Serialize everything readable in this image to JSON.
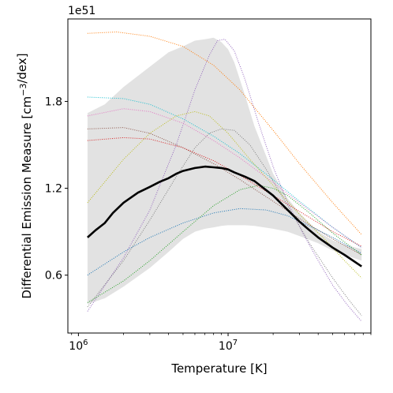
{
  "chart_data": {
    "type": "line",
    "title": "",
    "xlabel": "Temperature [K]",
    "ylabel": "Differential Emission Measure [cm$^{-3}$/dex]",
    "y_offset_text": "1e51",
    "x_scale": "log",
    "xlim": [
      850000,
      90000000
    ],
    "ylim": [
      0.2,
      2.37
    ],
    "x_ticks": [
      {
        "value": 1000000,
        "base": "10",
        "exp": "6"
      },
      {
        "value": 10000000,
        "base": "10",
        "exp": "7"
      }
    ],
    "y_ticks": [
      {
        "value": 0.6,
        "label": "0.6"
      },
      {
        "value": 1.2,
        "label": "1.2"
      },
      {
        "value": 1.8,
        "label": "1.8"
      }
    ],
    "grid": false,
    "legend": "none",
    "band": {
      "color": "#e2e2e2",
      "x": [
        1150000,
        1500000,
        2000000,
        3000000,
        4000000,
        5000000,
        6000000,
        7000000,
        8000000,
        9000000,
        10000000,
        11000000,
        13000000,
        15000000,
        20000000,
        25000000,
        30000000,
        40000000,
        50000000,
        60000000,
        78000000
      ],
      "upper": [
        1.72,
        1.78,
        1.9,
        2.04,
        2.14,
        2.18,
        2.22,
        2.23,
        2.24,
        2.21,
        2.16,
        2.07,
        1.84,
        1.63,
        1.3,
        1.13,
        1.03,
        0.9,
        0.84,
        0.81,
        0.78
      ],
      "lower": [
        0.4,
        0.44,
        0.52,
        0.65,
        0.76,
        0.85,
        0.9,
        0.92,
        0.93,
        0.94,
        0.945,
        0.945,
        0.945,
        0.94,
        0.92,
        0.9,
        0.87,
        0.82,
        0.77,
        0.74,
        0.7
      ]
    },
    "median": {
      "color": "#000000",
      "x": [
        1150000,
        1300000,
        1500000,
        1700000,
        2000000,
        2500000,
        3000000,
        3500000,
        4000000,
        4500000,
        5000000,
        6000000,
        7000000,
        8000000,
        9000000,
        10000000,
        11000000,
        13000000,
        15000000,
        20000000,
        25000000,
        30000000,
        35000000,
        40000000,
        50000000,
        60000000,
        78000000
      ],
      "y": [
        0.86,
        0.91,
        0.96,
        1.03,
        1.1,
        1.17,
        1.21,
        1.245,
        1.27,
        1.3,
        1.32,
        1.34,
        1.35,
        1.345,
        1.34,
        1.33,
        1.31,
        1.28,
        1.25,
        1.15,
        1.05,
        0.97,
        0.91,
        0.86,
        0.79,
        0.74,
        0.66
      ]
    },
    "series": [
      {
        "color": "#ff7f0e",
        "x": [
          1150000,
          1800000,
          3000000,
          5000000,
          8000000,
          12000000,
          20000000,
          30000000,
          50000000,
          78000000
        ],
        "y": [
          2.27,
          2.28,
          2.25,
          2.18,
          2.05,
          1.88,
          1.6,
          1.37,
          1.1,
          0.88
        ]
      },
      {
        "color": "#9467bd",
        "x": [
          1150000,
          2000000,
          3000000,
          4500000,
          6000000,
          7500000,
          8500000,
          9500000,
          11000000,
          13000000,
          16000000,
          20000000,
          25000000,
          32000000,
          40000000,
          50000000,
          62000000,
          78000000
        ],
        "y": [
          0.35,
          0.72,
          1.05,
          1.5,
          1.88,
          2.12,
          2.22,
          2.23,
          2.15,
          1.95,
          1.65,
          1.35,
          1.1,
          0.88,
          0.7,
          0.53,
          0.4,
          0.28
        ]
      },
      {
        "color": "#17becf",
        "x": [
          1150000,
          2000000,
          3000000,
          5000000,
          8000000,
          12000000,
          20000000,
          30000000,
          50000000,
          78000000
        ],
        "y": [
          1.83,
          1.82,
          1.78,
          1.68,
          1.56,
          1.44,
          1.26,
          1.11,
          0.93,
          0.79
        ]
      },
      {
        "color": "#e377c2",
        "x": [
          1150000,
          2000000,
          3000000,
          5000000,
          8000000,
          12000000,
          20000000,
          30000000,
          50000000,
          78000000
        ],
        "y": [
          1.7,
          1.75,
          1.73,
          1.65,
          1.53,
          1.41,
          1.24,
          1.1,
          0.93,
          0.79
        ]
      },
      {
        "color": "#bcbd22",
        "x": [
          1150000,
          2000000,
          3000000,
          4500000,
          6000000,
          7500000,
          10000000,
          14000000,
          20000000,
          30000000,
          45000000,
          60000000,
          78000000
        ],
        "y": [
          1.1,
          1.4,
          1.58,
          1.7,
          1.73,
          1.7,
          1.58,
          1.4,
          1.22,
          1.02,
          0.84,
          0.7,
          0.58
        ]
      },
      {
        "color": "#7f7f7f",
        "x": [
          1150000,
          2000000,
          3000000,
          4500000,
          6000000,
          7500000,
          9000000,
          11000000,
          14000000,
          18000000,
          25000000,
          35000000,
          50000000,
          65000000,
          78000000
        ],
        "y": [
          0.38,
          0.7,
          0.98,
          1.28,
          1.48,
          1.58,
          1.61,
          1.6,
          1.5,
          1.33,
          1.08,
          0.82,
          0.58,
          0.42,
          0.32
        ]
      },
      {
        "color": "#8c564b",
        "x": [
          1150000,
          2000000,
          3000000,
          5000000,
          8000000,
          12000000,
          20000000,
          30000000,
          50000000,
          78000000
        ],
        "y": [
          1.61,
          1.62,
          1.58,
          1.48,
          1.37,
          1.26,
          1.11,
          0.99,
          0.85,
          0.74
        ]
      },
      {
        "color": "#d62728",
        "x": [
          1150000,
          2000000,
          3000000,
          5000000,
          8000000,
          12000000,
          20000000,
          30000000,
          50000000,
          78000000
        ],
        "y": [
          1.53,
          1.55,
          1.54,
          1.48,
          1.39,
          1.29,
          1.15,
          1.04,
          0.9,
          0.8
        ]
      },
      {
        "color": "#1f77b4",
        "x": [
          1150000,
          2000000,
          3000000,
          5000000,
          8000000,
          12000000,
          18000000,
          25000000,
          35000000,
          50000000,
          78000000
        ],
        "y": [
          0.6,
          0.76,
          0.86,
          0.96,
          1.03,
          1.06,
          1.05,
          1.01,
          0.94,
          0.86,
          0.75
        ]
      },
      {
        "color": "#2ca02c",
        "x": [
          1150000,
          2000000,
          3000000,
          5000000,
          8000000,
          12000000,
          16000000,
          20000000,
          25000000,
          35000000,
          50000000,
          78000000
        ],
        "y": [
          0.41,
          0.56,
          0.7,
          0.9,
          1.08,
          1.19,
          1.22,
          1.2,
          1.15,
          1.03,
          0.89,
          0.74
        ]
      }
    ]
  }
}
